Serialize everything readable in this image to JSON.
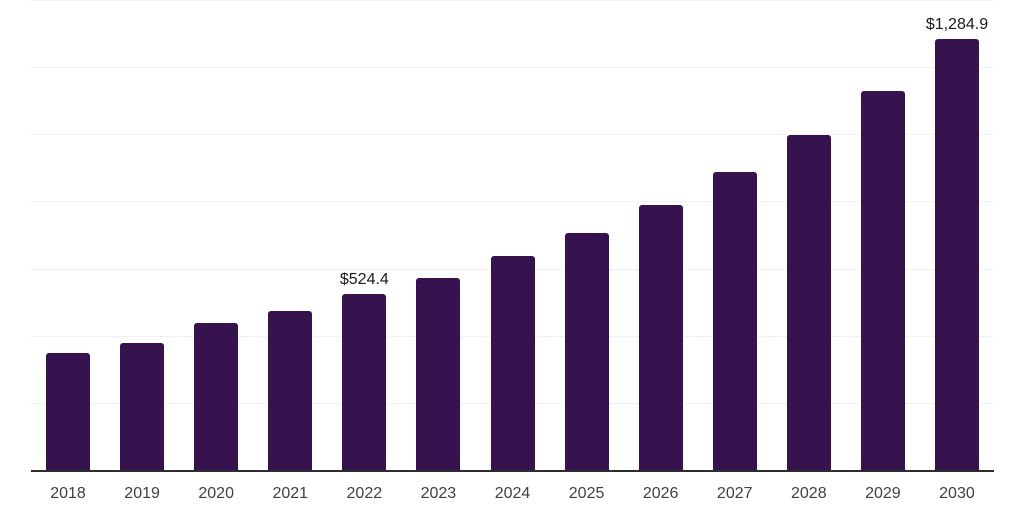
{
  "chart_data": {
    "type": "bar",
    "title": "",
    "xlabel": "",
    "ylabel": "",
    "categories": [
      "2018",
      "2019",
      "2020",
      "2021",
      "2022",
      "2023",
      "2024",
      "2025",
      "2026",
      "2027",
      "2028",
      "2029",
      "2030"
    ],
    "values": [
      350.0,
      378.0,
      439.0,
      475.0,
      524.4,
      573.0,
      638.0,
      707.0,
      789.0,
      888.0,
      998.0,
      1128.0,
      1284.9
    ],
    "value_labels": {
      "2022": "$524.4",
      "2030": "$1,284.9"
    },
    "ylim": [
      0,
      1400
    ],
    "grid_step": 200,
    "grid": "horizontal",
    "y_tick_labels_shown": false,
    "legend_position": "none",
    "colors": {
      "bar": "#36134E",
      "grid": "#f0f0f0",
      "axis_line": "#2d2d2d",
      "tick_label": "#404040",
      "value_label": "#1a1a1a",
      "background": "#ffffff"
    }
  }
}
